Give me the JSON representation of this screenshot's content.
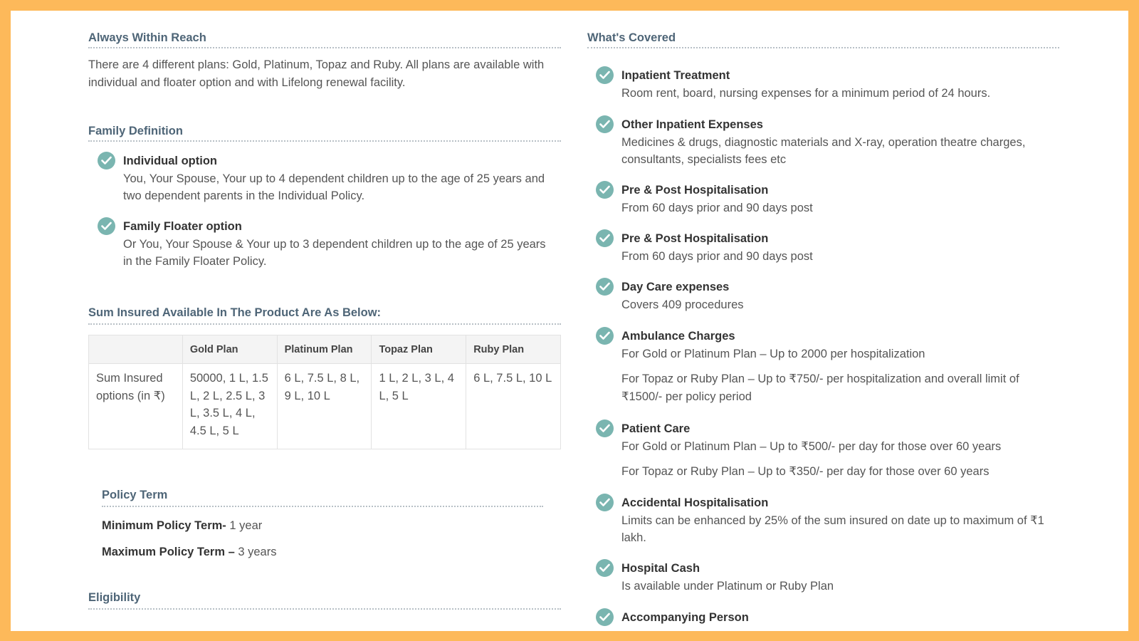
{
  "left": {
    "reach": {
      "heading": "Always Within Reach",
      "text": "There are 4 different plans: Gold, Platinum, Topaz and Ruby. All plans are available with individual and floater option and with Lifelong renewal facility."
    },
    "family": {
      "heading": "Family Definition",
      "items": [
        {
          "title": "Individual option",
          "desc": "You, Your Spouse, Your up to 4 dependent children up to the age of 25 years and two dependent parents in the Individual Policy."
        },
        {
          "title": "Family Floater option",
          "desc": "Or You, Your Spouse & Your up to 3 dependent children up to the age of 25 years in the Family Floater Policy."
        }
      ]
    },
    "sum": {
      "heading": "Sum Insured Available In The Product Are As Below:",
      "columns": [
        "",
        "Gold Plan",
        "Platinum Plan",
        "Topaz Plan",
        "Ruby Plan"
      ],
      "row": [
        "Sum Insured options (in ₹)",
        "50000, 1 L, 1.5 L, 2 L, 2.5 L, 3 L, 3.5 L, 4 L, 4.5 L, 5 L",
        "6 L, 7.5 L, 8 L, 9 L, 10 L",
        "1 L, 2 L, 3 L, 4 L, 5 L",
        "6 L, 7.5 L, 10 L"
      ]
    },
    "term": {
      "heading": "Policy Term",
      "min_label": "Minimum Policy Term-",
      "min_value": " 1 year",
      "max_label": "Maximum Policy Term –",
      "max_value": " 3 years"
    },
    "eligibility": {
      "heading": "Eligibility"
    }
  },
  "right": {
    "heading": "What's Covered",
    "items": [
      {
        "title": "Inpatient Treatment",
        "desc": "Room rent, board, nursing expenses for a minimum period of 24 hours."
      },
      {
        "title": "Other Inpatient Expenses",
        "desc": "Medicines & drugs, diagnostic materials and X-ray, operation theatre charges, consultants, specialists fees etc"
      },
      {
        "title": "Pre & Post Hospitalisation",
        "desc": "From 60 days prior and 90 days post"
      },
      {
        "title": "Pre & Post Hospitalisation",
        "desc": "From 60 days prior and 90 days post"
      },
      {
        "title": "Day Care expenses",
        "desc": "Covers 409 procedures"
      },
      {
        "title": "Ambulance Charges",
        "desc": "For Gold or Platinum Plan – Up to 2000 per hospitalization",
        "extra": "For Topaz or Ruby Plan – Up to ₹750/- per hospitalization and overall limit of ₹1500/- per policy period"
      },
      {
        "title": "Patient Care",
        "desc": "For Gold or Platinum Plan – Up to ₹500/- per day for those over 60 years",
        "extra": "For Topaz or Ruby Plan – Up to ₹350/- per day for those over 60 years"
      },
      {
        "title": "Accidental Hospitalisation",
        "desc": "Limits can be enhanced by 25% of the sum insured on date up to maximum of ₹1 lakh."
      },
      {
        "title": "Hospital Cash",
        "desc": "Is available under Platinum or Ruby Plan"
      },
      {
        "title": "Accompanying Person",
        "desc": ""
      }
    ]
  },
  "colors": {
    "frame": "#fdb95a",
    "heading": "#4e6577",
    "check": "#7ab5b0"
  },
  "icons": {
    "check": "check-circle-icon"
  }
}
